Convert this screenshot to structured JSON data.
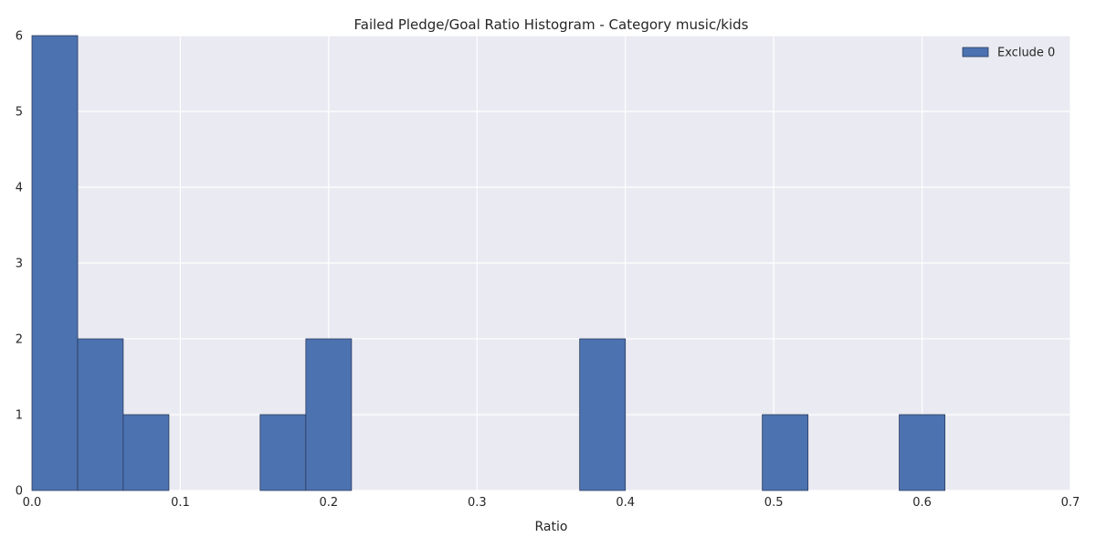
{
  "chart_data": {
    "type": "bar",
    "title": "Failed Pledge/Goal Ratio Histogram - Category music/kids",
    "xlabel": "Ratio",
    "ylabel": "",
    "xlim": [
      0,
      0.7
    ],
    "ylim": [
      0,
      6
    ],
    "xticks": [
      "0.0",
      "0.1",
      "0.2",
      "0.3",
      "0.4",
      "0.5",
      "0.6",
      "0.7"
    ],
    "yticks": [
      "0",
      "1",
      "2",
      "3",
      "4",
      "5",
      "6"
    ],
    "grid": true,
    "legend_position": "top-right",
    "series": [
      {
        "name": "Exclude 0",
        "color": "#4c72b0",
        "bins": [
          {
            "x0": 0.0,
            "x1": 0.0308,
            "count": 6
          },
          {
            "x0": 0.0308,
            "x1": 0.0615,
            "count": 2
          },
          {
            "x0": 0.0615,
            "x1": 0.0923,
            "count": 1
          },
          {
            "x0": 0.1538,
            "x1": 0.1846,
            "count": 1
          },
          {
            "x0": 0.1846,
            "x1": 0.2154,
            "count": 2
          },
          {
            "x0": 0.3692,
            "x1": 0.4,
            "count": 2
          },
          {
            "x0": 0.4923,
            "x1": 0.5231,
            "count": 1
          },
          {
            "x0": 0.5846,
            "x1": 0.6154,
            "count": 1
          }
        ]
      }
    ]
  }
}
